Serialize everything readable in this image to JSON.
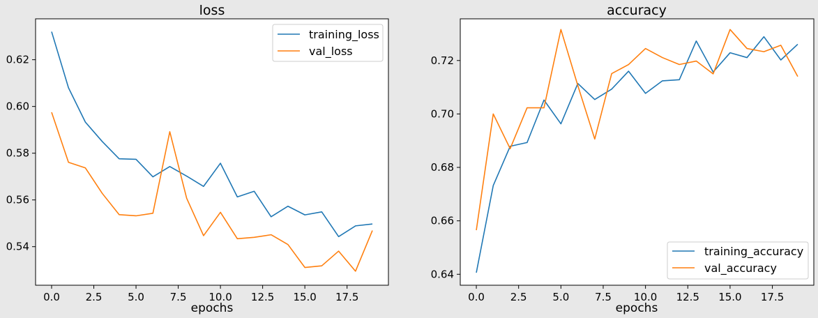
{
  "chart_data": [
    {
      "type": "line",
      "title": "loss",
      "xlabel": "epochs",
      "ylabel": "",
      "x": [
        0,
        1,
        2,
        3,
        4,
        5,
        6,
        7,
        8,
        9,
        10,
        11,
        12,
        13,
        14,
        15,
        16,
        17,
        18,
        19
      ],
      "xlim": [
        -0.95,
        19.95
      ],
      "ylim": [
        0.5235,
        0.6375
      ],
      "xticks": [
        0,
        2.5,
        5,
        7.5,
        10,
        12.5,
        15,
        17.5
      ],
      "xtick_labels": [
        "0.0",
        "2.5",
        "5.0",
        "7.5",
        "10.0",
        "12.5",
        "15.0",
        "17.5"
      ],
      "yticks": [
        0.54,
        0.56,
        0.58,
        0.6,
        0.62
      ],
      "ytick_labels": [
        "0.54",
        "0.56",
        "0.58",
        "0.60",
        "0.62"
      ],
      "grid": false,
      "legend_position": "top-right",
      "series": [
        {
          "name": "training_loss",
          "color": "#1f77b4",
          "values": [
            0.632,
            0.608,
            0.5933,
            0.585,
            0.5776,
            0.5774,
            0.5699,
            0.5743,
            0.5702,
            0.5658,
            0.5757,
            0.5613,
            0.5637,
            0.5528,
            0.5573,
            0.5536,
            0.5549,
            0.5443,
            0.5489,
            0.5497
          ]
        },
        {
          "name": "val_loss",
          "color": "#ff7f0e",
          "values": [
            0.5975,
            0.5761,
            0.5737,
            0.5628,
            0.5537,
            0.5532,
            0.5543,
            0.5892,
            0.5607,
            0.5447,
            0.5547,
            0.5434,
            0.544,
            0.5451,
            0.5409,
            0.5311,
            0.5318,
            0.5381,
            0.5295,
            0.5469
          ]
        }
      ]
    },
    {
      "type": "line",
      "title": "accuracy",
      "xlabel": "epochs",
      "ylabel": "",
      "x": [
        0,
        1,
        2,
        3,
        4,
        5,
        6,
        7,
        8,
        9,
        10,
        11,
        12,
        13,
        14,
        15,
        16,
        17,
        18,
        19
      ],
      "xlim": [
        -0.95,
        19.95
      ],
      "ylim": [
        0.6359,
        0.7356
      ],
      "xticks": [
        0,
        2.5,
        5,
        7.5,
        10,
        12.5,
        15,
        17.5
      ],
      "xtick_labels": [
        "0.0",
        "2.5",
        "5.0",
        "7.5",
        "10.0",
        "12.5",
        "15.0",
        "17.5"
      ],
      "yticks": [
        0.64,
        0.66,
        0.68,
        0.7,
        0.72
      ],
      "ytick_labels": [
        "0.64",
        "0.66",
        "0.68",
        "0.70",
        "0.72"
      ],
      "grid": false,
      "legend_position": "bottom-right",
      "series": [
        {
          "name": "training_accuracy",
          "color": "#1f77b4",
          "values": [
            0.6406,
            0.6732,
            0.6879,
            0.6893,
            0.7052,
            0.6963,
            0.7114,
            0.7054,
            0.7093,
            0.716,
            0.7077,
            0.7124,
            0.7128,
            0.7273,
            0.7157,
            0.7229,
            0.7211,
            0.7289,
            0.7202,
            0.7261
          ]
        },
        {
          "name": "val_accuracy",
          "color": "#ff7f0e",
          "values": [
            0.6565,
            0.7,
            0.687,
            0.7023,
            0.7023,
            0.7316,
            0.7106,
            0.6906,
            0.7151,
            0.7185,
            0.7245,
            0.7211,
            0.7185,
            0.7198,
            0.715,
            0.7316,
            0.7245,
            0.7233,
            0.7257,
            0.714
          ]
        }
      ]
    }
  ]
}
